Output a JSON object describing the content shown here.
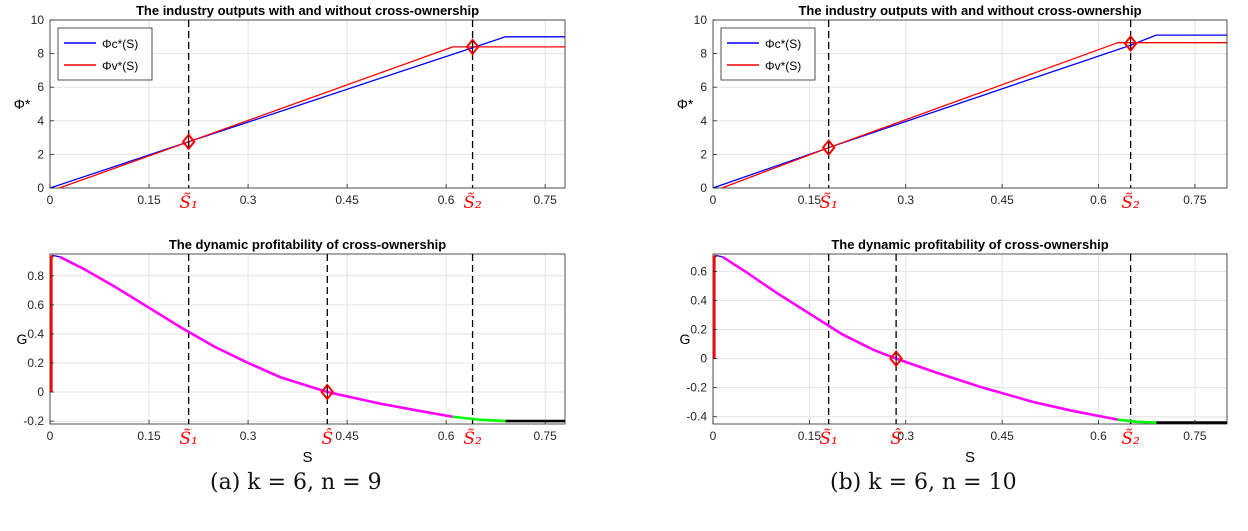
{
  "captions": {
    "a": "(a) k = 6, n = 9",
    "b": "(b) k = 6, n = 10"
  },
  "colors": {
    "phi_c": "#0000ff",
    "phi_v": "#ff0000",
    "g_start": "#ff0000",
    "g_blue": "#0000ff",
    "g_main": "#ff00ff",
    "g_green": "#00ff00",
    "g_tail": "#000000",
    "marker": "#ff0000",
    "vline": "#000000",
    "tick_highlight": "#ff0000"
  },
  "chart_data": [
    {
      "id": "a-top",
      "type": "line",
      "title": "The industry outputs with and without cross-ownership",
      "ylabel": "Φ*",
      "xlabel": "",
      "xlim": [
        0,
        0.78
      ],
      "ylim": [
        0,
        10
      ],
      "grid": true,
      "legend": "top-left",
      "xticks": [
        0,
        0.15,
        0.3,
        0.45,
        0.6,
        0.75
      ],
      "xtick_labels": [
        "0",
        "0.15",
        "0.3",
        "0.45",
        "0.6",
        "0.75"
      ],
      "yticks": [
        0,
        2,
        4,
        6,
        8,
        10
      ],
      "ytick_labels": [
        "0",
        "2",
        "4",
        "6",
        "8",
        "10"
      ],
      "special_ticks": [
        {
          "x": 0.21,
          "label": "S̃₁"
        },
        {
          "x": 0.64,
          "label": "S̃₂"
        }
      ],
      "vlines": [
        0.21,
        0.64
      ],
      "series": [
        {
          "name": "Φc*(S)",
          "color_key": "phi_c",
          "points": [
            [
              0,
              0
            ],
            [
              0.21,
              2.75
            ],
            [
              0.64,
              8.35
            ],
            [
              0.69,
              9.0
            ],
            [
              0.78,
              9.0
            ]
          ]
        },
        {
          "name": "Φv*(S)",
          "color_key": "phi_v",
          "points": [
            [
              0,
              -0.2
            ],
            [
              0.21,
              2.75
            ],
            [
              0.61,
              8.4
            ],
            [
              0.78,
              8.4
            ]
          ]
        }
      ],
      "markers": [
        [
          0.21,
          2.75
        ],
        [
          0.64,
          8.4
        ]
      ]
    },
    {
      "id": "a-bottom",
      "type": "line",
      "title": "The dynamic profitability of cross-ownership",
      "ylabel": "G",
      "xlabel": "S",
      "xlim": [
        0,
        0.78
      ],
      "ylim": [
        -0.22,
        0.95
      ],
      "grid": true,
      "xticks": [
        0,
        0.15,
        0.3,
        0.45,
        0.6,
        0.75
      ],
      "xtick_labels": [
        "0",
        "0.15",
        "0.3",
        "0.45",
        "0.6",
        "0.75"
      ],
      "yticks": [
        -0.2,
        0,
        0.2,
        0.4,
        0.6,
        0.8
      ],
      "ytick_labels": [
        "-0.2",
        "0",
        "0.2",
        "0.4",
        "0.6",
        "0.8"
      ],
      "special_ticks": [
        {
          "x": 0.21,
          "label": "S̃₁"
        },
        {
          "x": 0.42,
          "label": "Ŝ"
        },
        {
          "x": 0.64,
          "label": "S̃₂"
        }
      ],
      "vlines": [
        0.21,
        0.42,
        0.64
      ],
      "series": [
        {
          "color_key": "g_start",
          "points": [
            [
              0.002,
              0
            ],
            [
              0.002,
              0.93
            ],
            [
              0.005,
              0.94
            ]
          ]
        },
        {
          "color_key": "g_blue",
          "points": [
            [
              0.005,
              0.94
            ],
            [
              0.015,
              0.93
            ]
          ]
        },
        {
          "color_key": "g_main",
          "points": [
            [
              0.015,
              0.93
            ],
            [
              0.05,
              0.85
            ],
            [
              0.1,
              0.72
            ],
            [
              0.15,
              0.58
            ],
            [
              0.2,
              0.44
            ],
            [
              0.25,
              0.31
            ],
            [
              0.3,
              0.2
            ],
            [
              0.35,
              0.1
            ],
            [
              0.42,
              0.0
            ],
            [
              0.5,
              -0.08
            ],
            [
              0.56,
              -0.13
            ],
            [
              0.61,
              -0.17
            ]
          ]
        },
        {
          "color_key": "g_green",
          "points": [
            [
              0.61,
              -0.17
            ],
            [
              0.65,
              -0.19
            ],
            [
              0.69,
              -0.2
            ]
          ]
        },
        {
          "color_key": "g_tail",
          "points": [
            [
              0.69,
              -0.2
            ],
            [
              0.78,
              -0.2
            ]
          ]
        }
      ],
      "markers": [
        [
          0.42,
          0.0
        ]
      ]
    },
    {
      "id": "b-top",
      "type": "line",
      "title": "The industry outputs with and without cross-ownership",
      "ylabel": "Φ*",
      "xlabel": "",
      "xlim": [
        0,
        0.8
      ],
      "ylim": [
        0,
        10
      ],
      "grid": true,
      "legend": "top-left",
      "xticks": [
        0,
        0.15,
        0.3,
        0.45,
        0.6,
        0.75
      ],
      "xtick_labels": [
        "0",
        "0.15",
        "0.3",
        "0.45",
        "0.6",
        "0.75"
      ],
      "yticks": [
        0,
        2,
        4,
        6,
        8,
        10
      ],
      "ytick_labels": [
        "0",
        "2",
        "4",
        "6",
        "8",
        "10"
      ],
      "special_ticks": [
        {
          "x": 0.18,
          "label": "S̃₁"
        },
        {
          "x": 0.65,
          "label": "S̃₂"
        }
      ],
      "vlines": [
        0.18,
        0.65
      ],
      "series": [
        {
          "name": "Φc*(S)",
          "color_key": "phi_c",
          "points": [
            [
              0,
              0
            ],
            [
              0.18,
              2.4
            ],
            [
              0.65,
              8.5
            ],
            [
              0.69,
              9.1
            ],
            [
              0.8,
              9.1
            ]
          ]
        },
        {
          "name": "Φv*(S)",
          "color_key": "phi_v",
          "points": [
            [
              0,
              -0.2
            ],
            [
              0.18,
              2.4
            ],
            [
              0.63,
              8.65
            ],
            [
              0.8,
              8.65
            ]
          ]
        }
      ],
      "markers": [
        [
          0.18,
          2.4
        ],
        [
          0.65,
          8.6
        ]
      ]
    },
    {
      "id": "b-bottom",
      "type": "line",
      "title": "The dynamic profitability of cross-ownership",
      "ylabel": "G",
      "xlabel": "S",
      "xlim": [
        0,
        0.8
      ],
      "ylim": [
        -0.45,
        0.72
      ],
      "grid": true,
      "xticks": [
        0,
        0.15,
        0.3,
        0.45,
        0.6,
        0.75
      ],
      "xtick_labels": [
        "0",
        "0.15",
        "0.3",
        "0.45",
        "0.6",
        "0.75"
      ],
      "yticks": [
        -0.4,
        -0.2,
        0,
        0.2,
        0.4,
        0.6
      ],
      "ytick_labels": [
        "-0.4",
        "-0.2",
        "0",
        "0.2",
        "0.4",
        "0.6"
      ],
      "special_ticks": [
        {
          "x": 0.18,
          "label": "S̃₁"
        },
        {
          "x": 0.285,
          "label": "Ŝ"
        },
        {
          "x": 0.65,
          "label": "S̃₂"
        }
      ],
      "vlines": [
        0.18,
        0.285,
        0.65
      ],
      "series": [
        {
          "color_key": "g_start",
          "points": [
            [
              0.002,
              0
            ],
            [
              0.002,
              0.7
            ],
            [
              0.005,
              0.71
            ]
          ]
        },
        {
          "color_key": "g_blue",
          "points": [
            [
              0.005,
              0.71
            ],
            [
              0.015,
              0.7
            ]
          ]
        },
        {
          "color_key": "g_main",
          "points": [
            [
              0.015,
              0.7
            ],
            [
              0.05,
              0.6
            ],
            [
              0.1,
              0.45
            ],
            [
              0.15,
              0.31
            ],
            [
              0.2,
              0.17
            ],
            [
              0.25,
              0.06
            ],
            [
              0.285,
              0.0
            ],
            [
              0.35,
              -0.1
            ],
            [
              0.42,
              -0.2
            ],
            [
              0.5,
              -0.3
            ],
            [
              0.56,
              -0.36
            ],
            [
              0.63,
              -0.42
            ]
          ]
        },
        {
          "color_key": "g_green",
          "points": [
            [
              0.63,
              -0.42
            ],
            [
              0.66,
              -0.435
            ],
            [
              0.69,
              -0.44
            ]
          ]
        },
        {
          "color_key": "g_tail",
          "points": [
            [
              0.69,
              -0.44
            ],
            [
              0.8,
              -0.44
            ]
          ]
        }
      ],
      "markers": [
        [
          0.285,
          0.0
        ]
      ]
    }
  ]
}
